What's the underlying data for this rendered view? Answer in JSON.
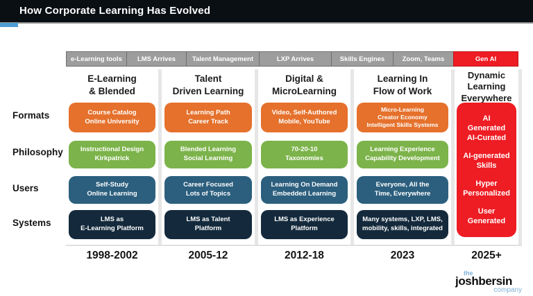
{
  "title": "How Corporate Learning Has Evolved",
  "timeline": {
    "segments": [
      {
        "label": "e-Learning tools",
        "color": "#9d9d9d"
      },
      {
        "label": "LMS Arrives",
        "color": "#9d9d9d"
      },
      {
        "label": "Talent Management",
        "color": "#9d9d9d"
      },
      {
        "label": "LXP Arrives",
        "color": "#9d9d9d"
      },
      {
        "label": "Skills Engines",
        "color": "#9d9d9d"
      },
      {
        "label": "Zoom, Teams",
        "color": "#9d9d9d"
      },
      {
        "label": "Gen AI",
        "color": "#ee1c23"
      }
    ]
  },
  "row_labels": [
    "Formats",
    "Philosophy",
    "Users",
    "Systems"
  ],
  "columns": [
    {
      "header": "E-Learning\n& Blended",
      "era": "1998-2002",
      "cells": [
        {
          "row": "Formats",
          "text": "Course Catalog\nOnline University",
          "color": "#e5712c"
        },
        {
          "row": "Philosophy",
          "text": "Instructional Design\nKirkpatrick",
          "color": "#7cb34a"
        },
        {
          "row": "Users",
          "text": "Self-Study\nOnline Learning",
          "color": "#2c5f7e"
        },
        {
          "row": "Systems",
          "text": "LMS as\nE-Learning Platform",
          "color": "#142a3c"
        }
      ]
    },
    {
      "header": "Talent\nDriven Learning",
      "era": "2005-12",
      "cells": [
        {
          "row": "Formats",
          "text": "Learning Path\nCareer Track",
          "color": "#e5712c"
        },
        {
          "row": "Philosophy",
          "text": "Blended Learning\nSocial Learning",
          "color": "#7cb34a"
        },
        {
          "row": "Users",
          "text": "Career Focused\nLots of Topics",
          "color": "#2c5f7e"
        },
        {
          "row": "Systems",
          "text": "LMS as Talent\nPlatform",
          "color": "#142a3c"
        }
      ]
    },
    {
      "header": "Digital &\nMicroLearning",
      "era": "2012-18",
      "cells": [
        {
          "row": "Formats",
          "text": "Video, Self-Authored\nMobile, YouTube",
          "color": "#e5712c"
        },
        {
          "row": "Philosophy",
          "text": "70-20-10\nTaxonomies",
          "color": "#7cb34a"
        },
        {
          "row": "Users",
          "text": "Learning On Demand\nEmbedded Learning",
          "color": "#2c5f7e"
        },
        {
          "row": "Systems",
          "text": "LMS as Experience\nPlatform",
          "color": "#142a3c"
        }
      ]
    },
    {
      "header": "Learning In\nFlow of Work",
      "era": "2023",
      "cells": [
        {
          "row": "Formats",
          "text": "Micro-Learning\nCreator Economy\nIntelligent Skills Systems",
          "color": "#e5712c"
        },
        {
          "row": "Philosophy",
          "text": "Learning Experience\nCapability Development",
          "color": "#7cb34a"
        },
        {
          "row": "Users",
          "text": "Everyone, All the\nTime, Everywhere",
          "color": "#2c5f7e"
        },
        {
          "row": "Systems",
          "text": "Many systems, LXP, LMS,\nmobility, skills, integrated",
          "color": "#142a3c"
        }
      ]
    },
    {
      "header": "Dynamic\nLearning\nEverywhere",
      "era": "2025+",
      "items": [
        "AI\nGenerated\nAI-Curated",
        "AI-generated\nSkills",
        "Hyper\nPersonalized",
        "User\nGenerated"
      ],
      "block_color": "#ee1c23"
    }
  ],
  "logo": {
    "the": "the",
    "name": "joshbersin",
    "company": "company"
  },
  "colors": {
    "titlebar": "#0a0f14",
    "accent_blue": "#4d9dd4",
    "timeline_gray": "#9d9d9d",
    "red": "#ee1c23",
    "orange": "#e5712c",
    "green": "#7cb34a",
    "steel_blue": "#2c5f7e",
    "navy": "#142a3c",
    "logo_blue": "#7fb2d9"
  }
}
